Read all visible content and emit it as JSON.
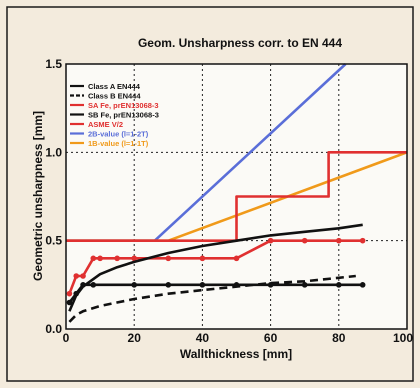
{
  "chart_data": {
    "type": "line",
    "title": "Geom. Unsharpness corr. to EN 444",
    "xlabel": "Wallthickness [mm]",
    "ylabel": "Geometric unsharpness [mm]",
    "xlim": [
      0,
      100
    ],
    "ylim": [
      0,
      1.5
    ],
    "x_ticks": [
      "0",
      "20",
      "40",
      "60",
      "80",
      "100"
    ],
    "y_ticks": [
      "0.0",
      "0.5",
      "1.0",
      "1.5"
    ],
    "grid": true,
    "legend_position": "top-left",
    "series": [
      {
        "name": "Class A EN444",
        "color": "#111111",
        "dash": "solid",
        "marker": "none",
        "points": [
          [
            1,
            0.1
          ],
          [
            3,
            0.19
          ],
          [
            5,
            0.24
          ],
          [
            10,
            0.31
          ],
          [
            15,
            0.35
          ],
          [
            20,
            0.38
          ],
          [
            30,
            0.43
          ],
          [
            40,
            0.47
          ],
          [
            50,
            0.5
          ],
          [
            60,
            0.53
          ],
          [
            70,
            0.55
          ],
          [
            80,
            0.57
          ],
          [
            87,
            0.59
          ]
        ]
      },
      {
        "name": "Class B EN444",
        "color": "#111111",
        "dash": "dashed",
        "marker": "none",
        "points": [
          [
            1,
            0.04
          ],
          [
            3,
            0.08
          ],
          [
            5,
            0.1
          ],
          [
            10,
            0.13
          ],
          [
            20,
            0.17
          ],
          [
            30,
            0.2
          ],
          [
            40,
            0.22
          ],
          [
            50,
            0.24
          ],
          [
            60,
            0.26
          ],
          [
            70,
            0.27
          ],
          [
            80,
            0.29
          ],
          [
            85,
            0.3
          ]
        ]
      },
      {
        "name": "SA Fe, prEN13068-3",
        "color": "#e03030",
        "dash": "solid",
        "marker": "circle",
        "points": [
          [
            1,
            0.2
          ],
          [
            3,
            0.3
          ],
          [
            5,
            0.3
          ],
          [
            8,
            0.4
          ],
          [
            10,
            0.4
          ],
          [
            15,
            0.4
          ],
          [
            20,
            0.4
          ],
          [
            30,
            0.4
          ],
          [
            40,
            0.4
          ],
          [
            50,
            0.4
          ],
          [
            60,
            0.5
          ],
          [
            70,
            0.5
          ],
          [
            80,
            0.5
          ],
          [
            87,
            0.5
          ]
        ]
      },
      {
        "name": "SB Fe, prEN13068-3",
        "color": "#111111",
        "dash": "solid",
        "marker": "circle",
        "points": [
          [
            1,
            0.15
          ],
          [
            3,
            0.2
          ],
          [
            5,
            0.25
          ],
          [
            8,
            0.25
          ],
          [
            20,
            0.25
          ],
          [
            30,
            0.25
          ],
          [
            40,
            0.25
          ],
          [
            50,
            0.25
          ],
          [
            60,
            0.25
          ],
          [
            70,
            0.25
          ],
          [
            80,
            0.25
          ],
          [
            87,
            0.25
          ]
        ]
      },
      {
        "name": "ASME V/2",
        "color": "#e03030",
        "dash": "solid",
        "marker": "none",
        "points": [
          [
            0,
            0.5
          ],
          [
            50,
            0.5
          ],
          [
            50,
            0.75
          ],
          [
            77,
            0.75
          ],
          [
            77,
            1.0
          ],
          [
            100,
            1.0
          ]
        ]
      },
      {
        "name": "2B-value (l=1-2T)",
        "color": "#5a6ed8",
        "dash": "solid",
        "marker": "none",
        "points": [
          [
            0,
            0.5
          ],
          [
            26,
            0.5
          ],
          [
            82,
            1.5
          ]
        ]
      },
      {
        "name": "1B-value (l=1-1T)",
        "color": "#f09a1a",
        "dash": "solid",
        "marker": "none",
        "points": [
          [
            0,
            0.5
          ],
          [
            30,
            0.5
          ],
          [
            100,
            1.0
          ]
        ]
      }
    ]
  }
}
